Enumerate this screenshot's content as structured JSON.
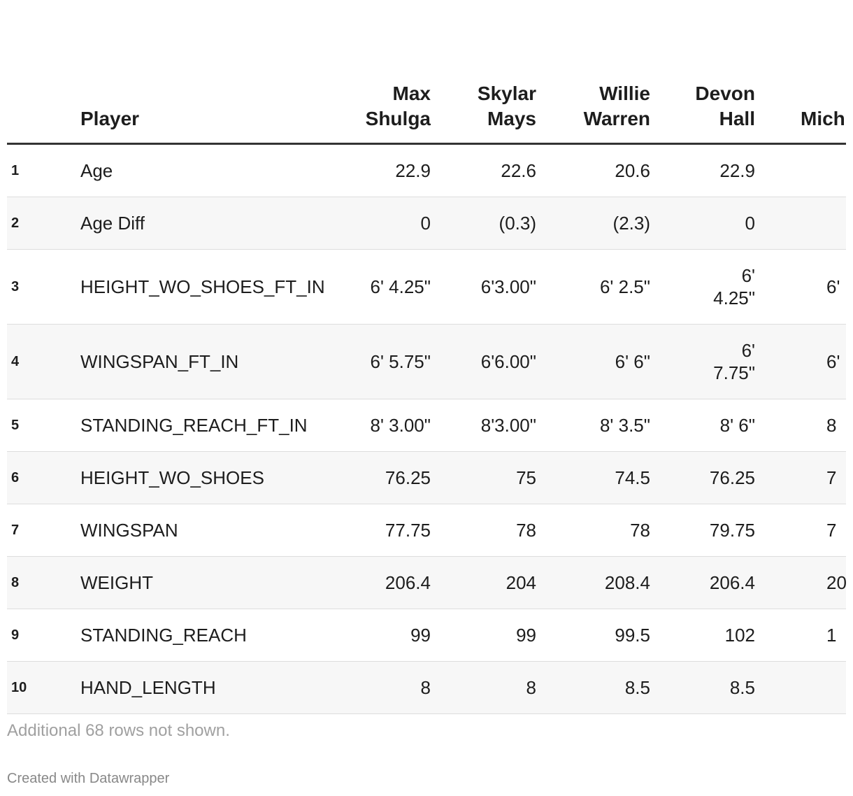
{
  "table": {
    "header": [
      "Player",
      "Max Shulga",
      "Skylar Mays",
      "Willie Warren",
      "Devon Hall",
      "Mich Gbi"
    ],
    "rows": [
      [
        "1",
        "Age",
        "22.9",
        "22.6",
        "20.6",
        "22.9",
        null
      ],
      [
        "2",
        "Age Diff",
        "0",
        "(0.3)",
        "(2.3)",
        "0",
        null
      ],
      [
        "3",
        "HEIGHT_WO_SHOES_FT_IN",
        "6' 4.25\"",
        "6'3.00\"",
        "6' 2.5\"",
        "6' 4.25\"",
        "6'"
      ],
      [
        "4",
        "WINGSPAN_FT_IN",
        "6' 5.75\"",
        "6'6.00\"",
        "6' 6\"",
        "6' 7.75\"",
        "6'"
      ],
      [
        "5",
        "STANDING_REACH_FT_IN",
        "8' 3.00\"",
        "8'3.00\"",
        "8' 3.5\"",
        "8' 6\"",
        "8"
      ],
      [
        "6",
        "HEIGHT_WO_SHOES",
        "76.25",
        "75",
        "74.5",
        "76.25",
        "7"
      ],
      [
        "7",
        "WINGSPAN",
        "77.75",
        "78",
        "78",
        "79.75",
        "7"
      ],
      [
        "8",
        "WEIGHT",
        "206.4",
        "204",
        "208.4",
        "206.4",
        "20"
      ],
      [
        "9",
        "STANDING_REACH",
        "99",
        "99",
        "99.5",
        "102",
        "1"
      ],
      [
        "10",
        "HAND_LENGTH",
        "8",
        "8",
        "8.5",
        "8.5",
        null
      ]
    ]
  },
  "footer": {
    "note": "Additional 68 rows not shown.",
    "credit": "Created with Datawrapper"
  }
}
